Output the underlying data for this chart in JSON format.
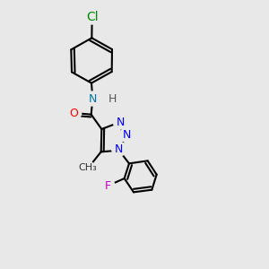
{
  "bg_color": "#e8e8e8",
  "bond_color": "#000000",
  "bond_lw": 1.5,
  "atom_colors": {
    "C": "#000000",
    "N": "#0000ff",
    "O": "#ff0000",
    "Cl": "#008800",
    "F": "#cc00cc",
    "H": "#555555",
    "NH": "#0077aa"
  },
  "font_size": 9,
  "font_size_small": 8
}
